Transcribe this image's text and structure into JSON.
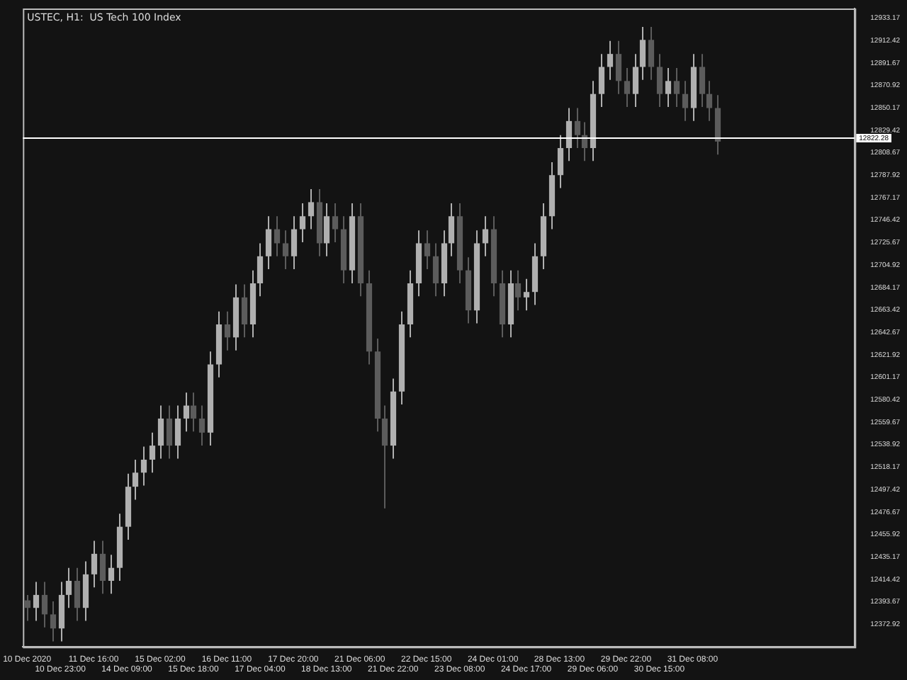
{
  "chart_data": {
    "type": "candlestick",
    "title": "USTEC, H1:  US Tech 100 Index",
    "categories": [
      "10 Dec 2020",
      null,
      null,
      null,
      "10 Dec 23:00",
      null,
      null,
      null,
      "11 Dec 16:00",
      null,
      null,
      null,
      "14 Dec 09:00",
      null,
      null,
      null,
      "15 Dec 02:00",
      null,
      null,
      null,
      "15 Dec 18:00",
      null,
      null,
      null,
      "16 Dec 11:00",
      null,
      null,
      null,
      "17 Dec 04:00",
      null,
      null,
      null,
      "17 Dec 20:00",
      null,
      null,
      null,
      "18 Dec 13:00",
      null,
      null,
      null,
      "21 Dec 06:00",
      null,
      null,
      null,
      "21 Dec 22:00",
      null,
      null,
      null,
      "22 Dec 15:00",
      null,
      null,
      null,
      "23 Dec 08:00",
      null,
      null,
      null,
      "24 Dec 01:00",
      null,
      null,
      null,
      "24 Dec 17:00",
      null,
      null,
      null,
      "28 Dec 13:00",
      null,
      null,
      null,
      "29 Dec 06:00",
      null,
      null,
      null,
      "29 Dec 22:00",
      null,
      null,
      null,
      "30 Dec 15:00",
      null,
      null,
      null,
      "31 Dec 08:00",
      null,
      null,
      null,
      null,
      null,
      null,
      null,
      null,
      null,
      null,
      null,
      null,
      null,
      null,
      null,
      null,
      null,
      null,
      null
    ],
    "ohlc": [
      [
        12395,
        12400,
        12376,
        12388
      ],
      [
        12388,
        12412,
        12376,
        12400
      ],
      [
        12400,
        12412,
        12370,
        12382
      ],
      [
        12382,
        12394,
        12357,
        12369
      ],
      [
        12369,
        12412,
        12357,
        12400
      ],
      [
        12400,
        12425,
        12388,
        12413
      ],
      [
        12413,
        12425,
        12376,
        12388
      ],
      [
        12388,
        12431,
        12376,
        12419
      ],
      [
        12419,
        12450,
        12407,
        12438
      ],
      [
        12438,
        12450,
        12401,
        12413
      ],
      [
        12413,
        12437,
        12401,
        12425
      ],
      [
        12425,
        12475,
        12413,
        12463
      ],
      [
        12463,
        12512,
        12451,
        12500
      ],
      [
        12500,
        12525,
        12488,
        12513
      ],
      [
        12513,
        12537,
        12501,
        12525
      ],
      [
        12525,
        12550,
        12513,
        12538
      ],
      [
        12538,
        12575,
        12526,
        12563
      ],
      [
        12563,
        12575,
        12526,
        12538
      ],
      [
        12538,
        12575,
        12526,
        12563
      ],
      [
        12563,
        12587,
        12551,
        12575
      ],
      [
        12575,
        12587,
        12551,
        12563
      ],
      [
        12563,
        12575,
        12538,
        12550
      ],
      [
        12550,
        12625,
        12538,
        12613
      ],
      [
        12613,
        12662,
        12601,
        12650
      ],
      [
        12650,
        12662,
        12626,
        12638
      ],
      [
        12638,
        12687,
        12626,
        12675
      ],
      [
        12675,
        12687,
        12638,
        12650
      ],
      [
        12650,
        12700,
        12638,
        12688
      ],
      [
        12688,
        12725,
        12676,
        12713
      ],
      [
        12713,
        12750,
        12701,
        12738
      ],
      [
        12738,
        12750,
        12713,
        12725
      ],
      [
        12725,
        12737,
        12701,
        12713
      ],
      [
        12713,
        12750,
        12701,
        12738
      ],
      [
        12738,
        12762,
        12726,
        12750
      ],
      [
        12750,
        12775,
        12738,
        12763
      ],
      [
        12763,
        12775,
        12713,
        12725
      ],
      [
        12725,
        12762,
        12713,
        12750
      ],
      [
        12750,
        12762,
        12726,
        12738
      ],
      [
        12738,
        12750,
        12688,
        12700
      ],
      [
        12700,
        12762,
        12688,
        12750
      ],
      [
        12750,
        12762,
        12676,
        12688
      ],
      [
        12688,
        12700,
        12613,
        12625
      ],
      [
        12625,
        12637,
        12551,
        12563
      ],
      [
        12563,
        12575,
        12480,
        12538
      ],
      [
        12538,
        12600,
        12526,
        12588
      ],
      [
        12588,
        12662,
        12576,
        12650
      ],
      [
        12650,
        12700,
        12638,
        12688
      ],
      [
        12688,
        12737,
        12676,
        12725
      ],
      [
        12725,
        12737,
        12701,
        12713
      ],
      [
        12713,
        12725,
        12676,
        12688
      ],
      [
        12688,
        12737,
        12676,
        12725
      ],
      [
        12725,
        12762,
        12713,
        12750
      ],
      [
        12750,
        12762,
        12688,
        12700
      ],
      [
        12700,
        12712,
        12651,
        12663
      ],
      [
        12663,
        12737,
        12651,
        12725
      ],
      [
        12725,
        12750,
        12713,
        12738
      ],
      [
        12738,
        12750,
        12676,
        12688
      ],
      [
        12688,
        12700,
        12638,
        12650
      ],
      [
        12650,
        12700,
        12638,
        12688
      ],
      [
        12688,
        12700,
        12663,
        12675
      ],
      [
        12675,
        12692,
        12663,
        12680
      ],
      [
        12680,
        12725,
        12668,
        12713
      ],
      [
        12713,
        12762,
        12701,
        12750
      ],
      [
        12750,
        12800,
        12738,
        12788
      ],
      [
        12788,
        12825,
        12776,
        12813
      ],
      [
        12813,
        12850,
        12801,
        12838
      ],
      [
        12838,
        12850,
        12813,
        12825
      ],
      [
        12825,
        12837,
        12801,
        12813
      ],
      [
        12813,
        12875,
        12801,
        12863
      ],
      [
        12863,
        12900,
        12851,
        12888
      ],
      [
        12888,
        12912,
        12876,
        12900
      ],
      [
        12900,
        12912,
        12863,
        12875
      ],
      [
        12875,
        12887,
        12851,
        12863
      ],
      [
        12863,
        12900,
        12851,
        12888
      ],
      [
        12888,
        12925,
        12876,
        12913
      ],
      [
        12913,
        12925,
        12876,
        12888
      ],
      [
        12888,
        12900,
        12851,
        12863
      ],
      [
        12863,
        12887,
        12851,
        12875
      ],
      [
        12875,
        12887,
        12851,
        12863
      ],
      [
        12863,
        12875,
        12838,
        12850
      ],
      [
        12850,
        12900,
        12838,
        12888
      ],
      [
        12888,
        12900,
        12851,
        12863
      ],
      [
        12863,
        12875,
        12838,
        12850
      ],
      [
        12850,
        12862,
        12807,
        12819
      ],
      null,
      null,
      null,
      null,
      null,
      null,
      null,
      null,
      null,
      null,
      null,
      null,
      null,
      null,
      null,
      null
    ],
    "colors": [
      "#5c5c5c",
      "#b0b0b0",
      "#5c5c5c",
      "#5c5c5c",
      "#b0b0b0",
      "#b0b0b0",
      "#5c5c5c",
      "#b0b0b0",
      "#b0b0b0",
      "#5c5c5c",
      "#b0b0b0",
      "#b0b0b0",
      "#b0b0b0",
      "#b0b0b0",
      "#b0b0b0",
      "#b0b0b0",
      "#b0b0b0",
      "#5c5c5c",
      "#b0b0b0",
      "#b0b0b0",
      "#5c5c5c",
      "#5c5c5c",
      "#b0b0b0",
      "#b0b0b0",
      "#5c5c5c",
      "#b0b0b0",
      "#5c5c5c",
      "#b0b0b0",
      "#b0b0b0",
      "#b0b0b0",
      "#5c5c5c",
      "#5c5c5c",
      "#b0b0b0",
      "#b0b0b0",
      "#b0b0b0",
      "#5c5c5c",
      "#b0b0b0",
      "#5c5c5c",
      "#5c5c5c",
      "#b0b0b0",
      "#5c5c5c",
      "#5c5c5c",
      "#5c5c5c",
      "#5c5c5c",
      "#b0b0b0",
      "#b0b0b0",
      "#b0b0b0",
      "#b0b0b0",
      "#5c5c5c",
      "#5c5c5c",
      "#b0b0b0",
      "#b0b0b0",
      "#5c5c5c",
      "#5c5c5c",
      "#b0b0b0",
      "#b0b0b0",
      "#5c5c5c",
      "#5c5c5c",
      "#b0b0b0",
      "#5c5c5c",
      "#b0b0b0",
      "#b0b0b0",
      "#b0b0b0",
      "#b0b0b0",
      "#b0b0b0",
      "#b0b0b0",
      "#5c5c5c",
      "#5c5c5c",
      "#b0b0b0",
      "#b0b0b0",
      "#b0b0b0",
      "#5c5c5c",
      "#5c5c5c",
      "#b0b0b0",
      "#b0b0b0",
      "#5c5c5c",
      "#5c5c5c",
      "#b0b0b0",
      "#5c5c5c",
      "#5c5c5c",
      "#b0b0b0",
      "#5c5c5c",
      "#5c5c5c",
      "#5c5c5c",
      null,
      null,
      null,
      null,
      null,
      null,
      null,
      null,
      null,
      null,
      null,
      null,
      null,
      null,
      null,
      null
    ],
    "ylim": [
      12352,
      12942
    ],
    "yticks": [
      12372.92,
      12393.67,
      12414.42,
      12435.17,
      12455.92,
      12476.67,
      12497.42,
      12518.17,
      12538.92,
      12559.67,
      12580.42,
      12601.17,
      12621.92,
      12642.67,
      12663.42,
      12684.17,
      12704.92,
      12725.67,
      12746.42,
      12767.17,
      12787.92,
      12808.67,
      12829.42,
      12850.17,
      12870.92,
      12891.67,
      12912.42,
      12933.17
    ],
    "ref_lines": [
      {
        "axis": "y",
        "value": 12822.28,
        "label": "12822.28",
        "color": "#ffffff"
      }
    ],
    "grid": false,
    "legend": false
  }
}
